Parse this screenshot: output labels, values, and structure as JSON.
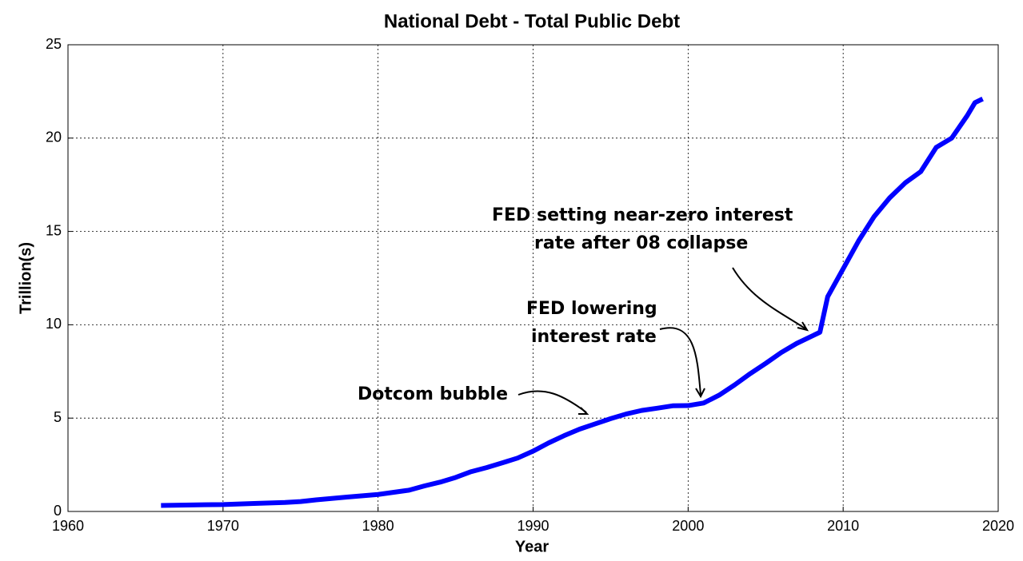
{
  "chart_data": {
    "type": "line",
    "title": "National Debt - Total Public Debt",
    "xlabel": "Year",
    "ylabel": "Trillion(s)",
    "color": "#0000ff",
    "grid": true,
    "x": [
      1966,
      1968,
      1970,
      1972,
      1974,
      1975,
      1976,
      1978,
      1980,
      1982,
      1983,
      1984,
      1985,
      1986,
      1987,
      1988,
      1989,
      1990,
      1991,
      1992,
      1993,
      1994,
      1995,
      1996,
      1997,
      1998,
      1999,
      2000,
      2001,
      2002,
      2003,
      2004,
      2005,
      2006,
      2007,
      2008,
      2008.5,
      2009,
      2010,
      2011,
      2012,
      2013,
      2014,
      2015,
      2016,
      2017,
      2018,
      2018.5,
      2019
    ],
    "values": [
      0.32,
      0.35,
      0.37,
      0.43,
      0.48,
      0.53,
      0.62,
      0.77,
      0.91,
      1.14,
      1.37,
      1.57,
      1.82,
      2.13,
      2.35,
      2.6,
      2.86,
      3.23,
      3.67,
      4.06,
      4.41,
      4.69,
      4.97,
      5.22,
      5.41,
      5.53,
      5.66,
      5.67,
      5.81,
      6.23,
      6.78,
      7.38,
      7.93,
      8.51,
      9.0,
      9.4,
      9.6,
      11.5,
      13.0,
      14.5,
      15.8,
      16.8,
      17.6,
      18.2,
      19.5,
      20.0,
      21.2,
      21.9,
      22.1
    ],
    "xlim": [
      1960,
      2020
    ],
    "xticks": [
      1960,
      1970,
      1980,
      1990,
      2000,
      2010,
      2020
    ],
    "ylim": [
      0,
      25
    ],
    "yticks": [
      0,
      5,
      10,
      15,
      20,
      25
    ],
    "annotations": [
      {
        "lines": [
          "Dotcom bubble"
        ]
      },
      {
        "lines": [
          "FED lowering",
          "interest rate"
        ]
      },
      {
        "lines": [
          "FED setting near-zero interest",
          "rate after 08 collapse"
        ]
      }
    ]
  }
}
